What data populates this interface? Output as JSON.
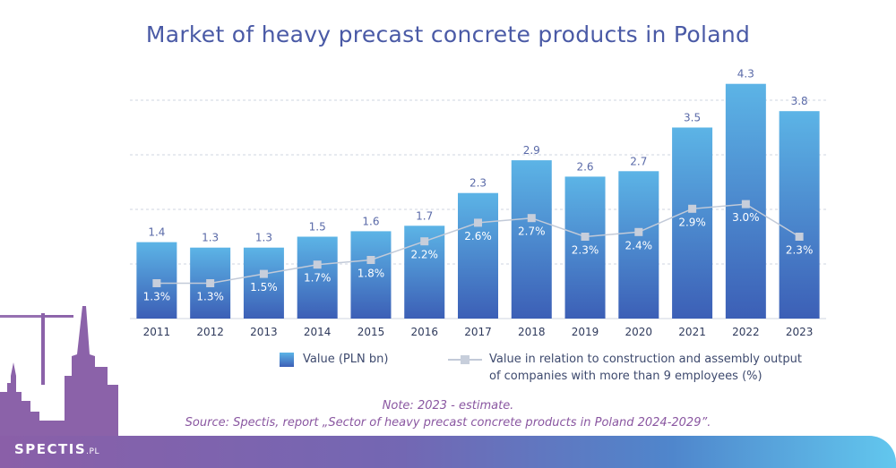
{
  "chart_data": {
    "type": "bar",
    "title": "Market of heavy precast concrete products in Poland",
    "categories": [
      "2011",
      "2012",
      "2013",
      "2014",
      "2015",
      "2016",
      "2017",
      "2018",
      "2019",
      "2020",
      "2021",
      "2022",
      "2023"
    ],
    "series": [
      {
        "name": "Value (PLN bn)",
        "type": "bar",
        "values": [
          1.4,
          1.3,
          1.3,
          1.5,
          1.6,
          1.7,
          2.3,
          2.9,
          2.6,
          2.7,
          3.5,
          4.3,
          3.8
        ],
        "labels": [
          "1.4",
          "1.3",
          "1.3",
          "1.5",
          "1.6",
          "1.7",
          "2.3",
          "2.9",
          "2.6",
          "2.7",
          "3.5",
          "4.3",
          "3.8"
        ]
      },
      {
        "name": "Value in relation to construction and assembly output of companies with more than 9 employees (%)",
        "type": "line",
        "values": [
          1.3,
          1.3,
          1.5,
          1.7,
          1.8,
          2.2,
          2.6,
          2.7,
          2.3,
          2.4,
          2.9,
          3.0,
          2.3
        ],
        "labels": [
          "1.3%",
          "1.3%",
          "1.5%",
          "1.7%",
          "1.8%",
          "2.2%",
          "2.6%",
          "2.7%",
          "2.3%",
          "2.4%",
          "2.9%",
          "3.0%",
          "2.3%"
        ]
      }
    ],
    "ylim": [
      0,
      4.5
    ],
    "grid": true,
    "legend": "bottom",
    "colors": {
      "bar_top": "#5cb4e6",
      "bar_bottom": "#3c5fb6",
      "line": "#c2cad8",
      "marker": "#c7cedb",
      "bar_label": "#5a6aa8",
      "grid": "#cfd6e2"
    }
  },
  "legend": {
    "bar_label": "Value (PLN bn)",
    "line_label_1": "Value in relation to construction and assembly output",
    "line_label_2": "of companies with more than 9 employees (%)"
  },
  "notes": {
    "note": "Note: 2023 - estimate.",
    "source": "Source: Spectis, report „Sector of heavy precast concrete products in Poland 2024-2029”."
  },
  "brand": {
    "name": "SPECTIS",
    "suffix": ".PL"
  }
}
